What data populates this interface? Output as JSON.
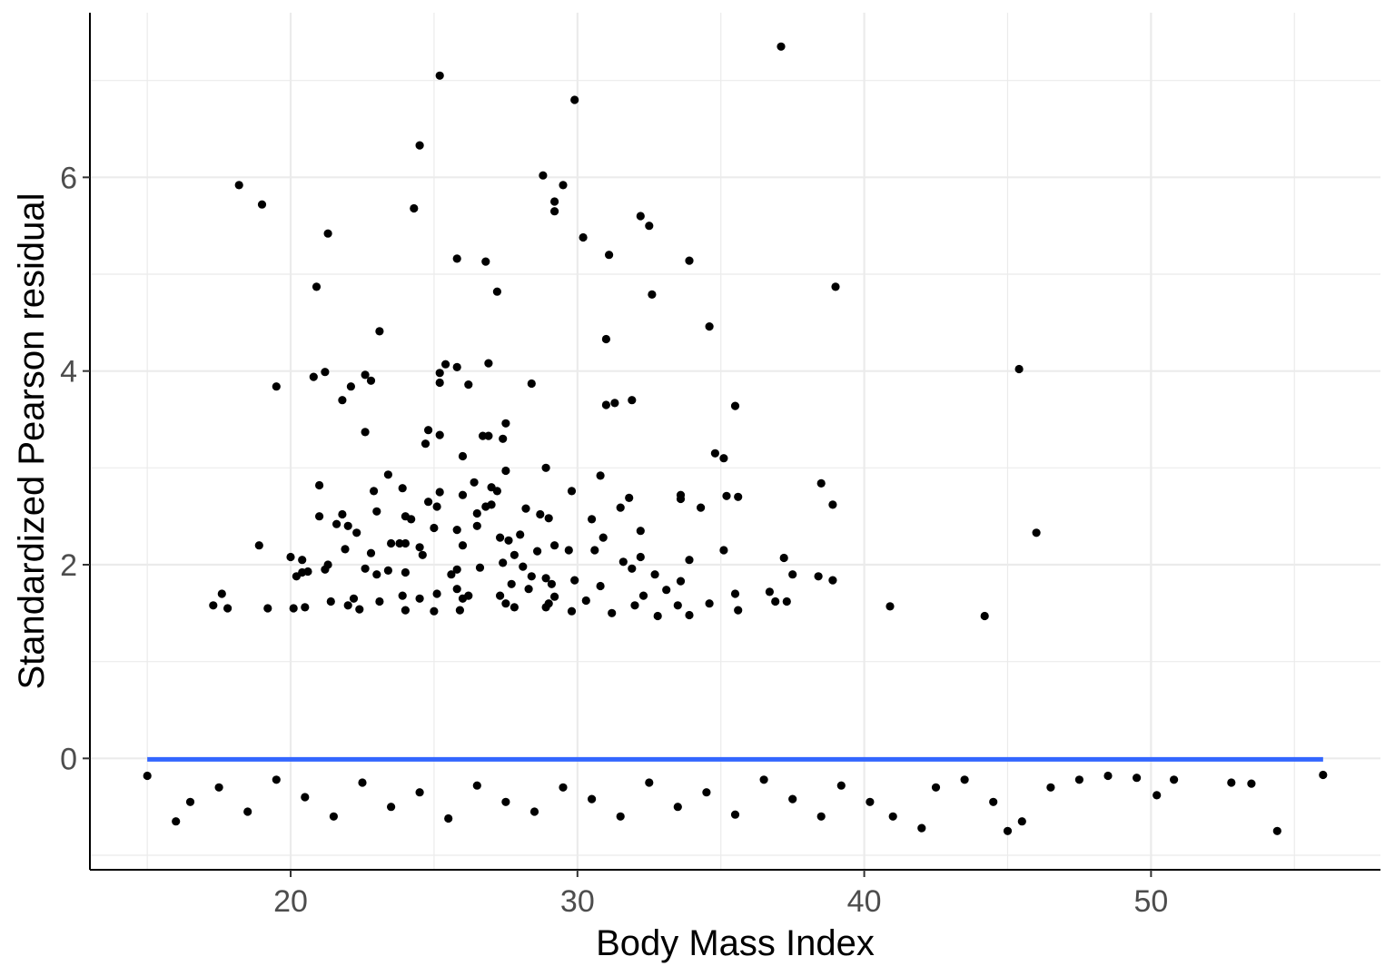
{
  "chart_data": {
    "type": "scatter",
    "xlabel": "Body Mass Index",
    "ylabel": "Standardized Pearson residual",
    "xlim": [
      13,
      58
    ],
    "ylim": [
      -1.15,
      7.7
    ],
    "xticks": [
      20,
      30,
      40,
      50
    ],
    "yticks": [
      0,
      2,
      4,
      6
    ],
    "grid": true,
    "colors": {
      "points": "#000000",
      "smooth_line": "#3366ff",
      "grid": "#ebebeb",
      "axis": "#000000"
    },
    "smooth_line": {
      "x": [
        15.0,
        56.0
      ],
      "y": [
        -0.01,
        -0.01
      ]
    },
    "points": [
      [
        37.1,
        7.35
      ],
      [
        25.2,
        7.05
      ],
      [
        29.9,
        6.8
      ],
      [
        24.5,
        6.33
      ],
      [
        28.8,
        6.02
      ],
      [
        29.5,
        5.92
      ],
      [
        18.2,
        5.92
      ],
      [
        19.0,
        5.72
      ],
      [
        29.2,
        5.75
      ],
      [
        29.2,
        5.65
      ],
      [
        24.3,
        5.68
      ],
      [
        32.2,
        5.6
      ],
      [
        32.5,
        5.5
      ],
      [
        21.3,
        5.42
      ],
      [
        30.2,
        5.38
      ],
      [
        31.1,
        5.2
      ],
      [
        25.8,
        5.16
      ],
      [
        26.8,
        5.13
      ],
      [
        33.9,
        5.14
      ],
      [
        20.9,
        4.87
      ],
      [
        39.0,
        4.87
      ],
      [
        27.2,
        4.82
      ],
      [
        32.6,
        4.79
      ],
      [
        23.1,
        4.41
      ],
      [
        34.6,
        4.46
      ],
      [
        31.0,
        4.33
      ],
      [
        26.9,
        4.08
      ],
      [
        25.4,
        4.07
      ],
      [
        25.8,
        4.04
      ],
      [
        45.4,
        4.02
      ],
      [
        21.2,
        3.99
      ],
      [
        20.8,
        3.94
      ],
      [
        25.2,
        3.98
      ],
      [
        22.6,
        3.96
      ],
      [
        22.8,
        3.9
      ],
      [
        25.2,
        3.88
      ],
      [
        26.2,
        3.86
      ],
      [
        28.4,
        3.87
      ],
      [
        19.5,
        3.84
      ],
      [
        22.1,
        3.84
      ],
      [
        21.8,
        3.7
      ],
      [
        31.9,
        3.7
      ],
      [
        31.0,
        3.65
      ],
      [
        31.3,
        3.67
      ],
      [
        35.5,
        3.64
      ],
      [
        27.5,
        3.46
      ],
      [
        22.6,
        3.37
      ],
      [
        24.8,
        3.39
      ],
      [
        25.2,
        3.34
      ],
      [
        26.7,
        3.33
      ],
      [
        26.9,
        3.33
      ],
      [
        27.4,
        3.3
      ],
      [
        24.7,
        3.25
      ],
      [
        34.8,
        3.15
      ],
      [
        35.1,
        3.1
      ],
      [
        26.0,
        3.12
      ],
      [
        28.9,
        3.0
      ],
      [
        27.5,
        2.97
      ],
      [
        23.4,
        2.93
      ],
      [
        30.8,
        2.92
      ],
      [
        38.5,
        2.84
      ],
      [
        21.0,
        2.82
      ],
      [
        26.4,
        2.85
      ],
      [
        27.0,
        2.8
      ],
      [
        23.9,
        2.79
      ],
      [
        22.9,
        2.76
      ],
      [
        25.2,
        2.75
      ],
      [
        29.8,
        2.76
      ],
      [
        27.2,
        2.76
      ],
      [
        26.0,
        2.72
      ],
      [
        35.2,
        2.71
      ],
      [
        35.6,
        2.7
      ],
      [
        33.6,
        2.68
      ],
      [
        33.6,
        2.72
      ],
      [
        31.8,
        2.69
      ],
      [
        24.8,
        2.65
      ],
      [
        27.0,
        2.62
      ],
      [
        38.9,
        2.62
      ],
      [
        25.1,
        2.6
      ],
      [
        26.8,
        2.6
      ],
      [
        31.5,
        2.59
      ],
      [
        34.3,
        2.59
      ],
      [
        28.2,
        2.58
      ],
      [
        23.0,
        2.55
      ],
      [
        26.5,
        2.53
      ],
      [
        28.7,
        2.52
      ],
      [
        21.8,
        2.52
      ],
      [
        21.0,
        2.5
      ],
      [
        24.0,
        2.5
      ],
      [
        29.0,
        2.48
      ],
      [
        24.2,
        2.47
      ],
      [
        30.5,
        2.47
      ],
      [
        21.6,
        2.42
      ],
      [
        22.0,
        2.4
      ],
      [
        26.5,
        2.4
      ],
      [
        25.0,
        2.38
      ],
      [
        32.2,
        2.35
      ],
      [
        25.8,
        2.36
      ],
      [
        22.3,
        2.33
      ],
      [
        46.0,
        2.33
      ],
      [
        28.0,
        2.31
      ],
      [
        27.3,
        2.28
      ],
      [
        30.9,
        2.28
      ],
      [
        23.5,
        2.22
      ],
      [
        24.0,
        2.22
      ],
      [
        23.8,
        2.22
      ],
      [
        27.6,
        2.25
      ],
      [
        26.0,
        2.2
      ],
      [
        29.2,
        2.2
      ],
      [
        18.9,
        2.2
      ],
      [
        24.5,
        2.18
      ],
      [
        21.9,
        2.16
      ],
      [
        29.7,
        2.15
      ],
      [
        28.6,
        2.14
      ],
      [
        35.1,
        2.15
      ],
      [
        30.6,
        2.15
      ],
      [
        22.8,
        2.12
      ],
      [
        24.6,
        2.1
      ],
      [
        27.8,
        2.1
      ],
      [
        20.0,
        2.08
      ],
      [
        32.2,
        2.08
      ],
      [
        37.2,
        2.07
      ],
      [
        20.4,
        2.05
      ],
      [
        31.6,
        2.03
      ],
      [
        27.4,
        2.02
      ],
      [
        21.3,
        2.0
      ],
      [
        28.1,
        1.98
      ],
      [
        33.9,
        2.05
      ],
      [
        21.2,
        1.95
      ],
      [
        22.6,
        1.96
      ],
      [
        25.8,
        1.95
      ],
      [
        26.6,
        1.97
      ],
      [
        31.9,
        1.96
      ],
      [
        23.4,
        1.94
      ],
      [
        20.6,
        1.93
      ],
      [
        23.0,
        1.9
      ],
      [
        32.7,
        1.9
      ],
      [
        25.6,
        1.9
      ],
      [
        20.2,
        1.88
      ],
      [
        20.4,
        1.92
      ],
      [
        28.4,
        1.88
      ],
      [
        37.5,
        1.9
      ],
      [
        38.4,
        1.88
      ],
      [
        24.0,
        1.92
      ],
      [
        28.9,
        1.86
      ],
      [
        38.9,
        1.84
      ],
      [
        29.9,
        1.84
      ],
      [
        33.6,
        1.83
      ],
      [
        27.7,
        1.8
      ],
      [
        29.1,
        1.8
      ],
      [
        30.8,
        1.78
      ],
      [
        25.8,
        1.75
      ],
      [
        28.3,
        1.75
      ],
      [
        33.1,
        1.74
      ],
      [
        36.7,
        1.72
      ],
      [
        17.6,
        1.7
      ],
      [
        25.1,
        1.7
      ],
      [
        35.5,
        1.7
      ],
      [
        23.9,
        1.68
      ],
      [
        26.2,
        1.68
      ],
      [
        27.3,
        1.68
      ],
      [
        29.2,
        1.67
      ],
      [
        32.3,
        1.68
      ],
      [
        22.2,
        1.65
      ],
      [
        24.5,
        1.65
      ],
      [
        26.0,
        1.65
      ],
      [
        30.3,
        1.63
      ],
      [
        36.9,
        1.62
      ],
      [
        37.3,
        1.62
      ],
      [
        34.6,
        1.6
      ],
      [
        21.4,
        1.62
      ],
      [
        23.1,
        1.62
      ],
      [
        27.5,
        1.6
      ],
      [
        29.0,
        1.6
      ],
      [
        32.0,
        1.58
      ],
      [
        22.0,
        1.58
      ],
      [
        33.5,
        1.58
      ],
      [
        40.9,
        1.57
      ],
      [
        17.3,
        1.58
      ],
      [
        17.8,
        1.55
      ],
      [
        20.1,
        1.55
      ],
      [
        20.5,
        1.56
      ],
      [
        19.2,
        1.55
      ],
      [
        22.4,
        1.54
      ],
      [
        24.0,
        1.53
      ],
      [
        25.0,
        1.52
      ],
      [
        25.9,
        1.53
      ],
      [
        27.8,
        1.56
      ],
      [
        28.9,
        1.56
      ],
      [
        29.8,
        1.52
      ],
      [
        31.2,
        1.5
      ],
      [
        35.6,
        1.53
      ],
      [
        32.8,
        1.47
      ],
      [
        33.9,
        1.48
      ],
      [
        44.2,
        1.47
      ],
      [
        15.0,
        -0.18
      ],
      [
        16.0,
        -0.65
      ],
      [
        16.5,
        -0.45
      ],
      [
        17.5,
        -0.3
      ],
      [
        18.5,
        -0.55
      ],
      [
        19.5,
        -0.22
      ],
      [
        20.5,
        -0.4
      ],
      [
        21.5,
        -0.6
      ],
      [
        22.5,
        -0.25
      ],
      [
        23.5,
        -0.5
      ],
      [
        24.5,
        -0.35
      ],
      [
        25.5,
        -0.62
      ],
      [
        26.5,
        -0.28
      ],
      [
        27.5,
        -0.45
      ],
      [
        28.5,
        -0.55
      ],
      [
        29.5,
        -0.3
      ],
      [
        30.5,
        -0.42
      ],
      [
        31.5,
        -0.6
      ],
      [
        32.5,
        -0.25
      ],
      [
        33.5,
        -0.5
      ],
      [
        34.5,
        -0.35
      ],
      [
        35.5,
        -0.58
      ],
      [
        36.5,
        -0.22
      ],
      [
        37.5,
        -0.42
      ],
      [
        38.5,
        -0.6
      ],
      [
        39.2,
        -0.28
      ],
      [
        40.2,
        -0.45
      ],
      [
        41.0,
        -0.6
      ],
      [
        42.0,
        -0.72
      ],
      [
        42.5,
        -0.3
      ],
      [
        43.5,
        -0.22
      ],
      [
        44.5,
        -0.45
      ],
      [
        45.0,
        -0.75
      ],
      [
        45.5,
        -0.65
      ],
      [
        46.5,
        -0.3
      ],
      [
        47.5,
        -0.22
      ],
      [
        48.5,
        -0.18
      ],
      [
        49.5,
        -0.2
      ],
      [
        50.2,
        -0.38
      ],
      [
        50.8,
        -0.22
      ],
      [
        52.8,
        -0.25
      ],
      [
        53.5,
        -0.26
      ],
      [
        54.4,
        -0.75
      ],
      [
        56.0,
        -0.17
      ]
    ]
  }
}
